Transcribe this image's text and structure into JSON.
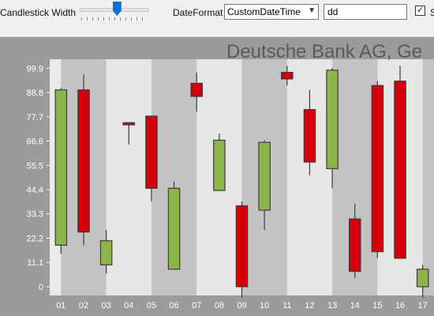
{
  "toolbar": {
    "candlestick_width_label": "Candlestick Width",
    "candlestick_width_value": 0.55,
    "date_format_label": "DateFormat",
    "date_format_value": "CustomDateTime",
    "custom_format_value": "dd",
    "checkbox_checked": true,
    "checkbox_label": "S"
  },
  "chart_data": {
    "type": "candlestick",
    "title": "Deutsche Bank AG, Ge",
    "xlabel": "",
    "ylabel": "",
    "ylim": [
      -4,
      104
    ],
    "y_ticks": [
      "99.9",
      "88.8",
      "77.7",
      "66.6",
      "55.5",
      "44.4",
      "33.3",
      "22.2",
      "11.1",
      "0"
    ],
    "y_tick_values": [
      99.9,
      88.8,
      77.7,
      66.6,
      55.5,
      44.4,
      33.3,
      22.2,
      11.1,
      0
    ],
    "categories": [
      "01",
      "02",
      "03",
      "04",
      "05",
      "06",
      "07",
      "08",
      "09",
      "10",
      "11",
      "12",
      "13",
      "14",
      "15",
      "16",
      "17"
    ],
    "open": [
      19,
      90,
      10,
      75,
      78,
      8,
      93,
      44,
      37,
      35,
      98,
      81,
      54,
      31,
      92,
      94,
      0
    ],
    "high": [
      91,
      97,
      26,
      75,
      78,
      48,
      98,
      70,
      39,
      67,
      101,
      90,
      100,
      38,
      94,
      101,
      10
    ],
    "low": [
      15,
      19,
      6,
      65,
      39,
      8,
      80,
      44,
      -5,
      26,
      92,
      51,
      45,
      4,
      13,
      13,
      -5
    ],
    "close": [
      90,
      25,
      21,
      74,
      45,
      45,
      87,
      67,
      0,
      66,
      95,
      57,
      99,
      7,
      16,
      13,
      8
    ],
    "grid": true,
    "colors": {
      "rising": "#8db54a",
      "falling": "#d4000c",
      "band_dark": "#c3c3c3",
      "band_light": "#e6e6e6",
      "plot_background": "#eaeaea",
      "frame": "#9b9b9b",
      "outline": "#3c3c3c",
      "title": "#5a5a5a",
      "tick_text": "#ffffff"
    }
  }
}
